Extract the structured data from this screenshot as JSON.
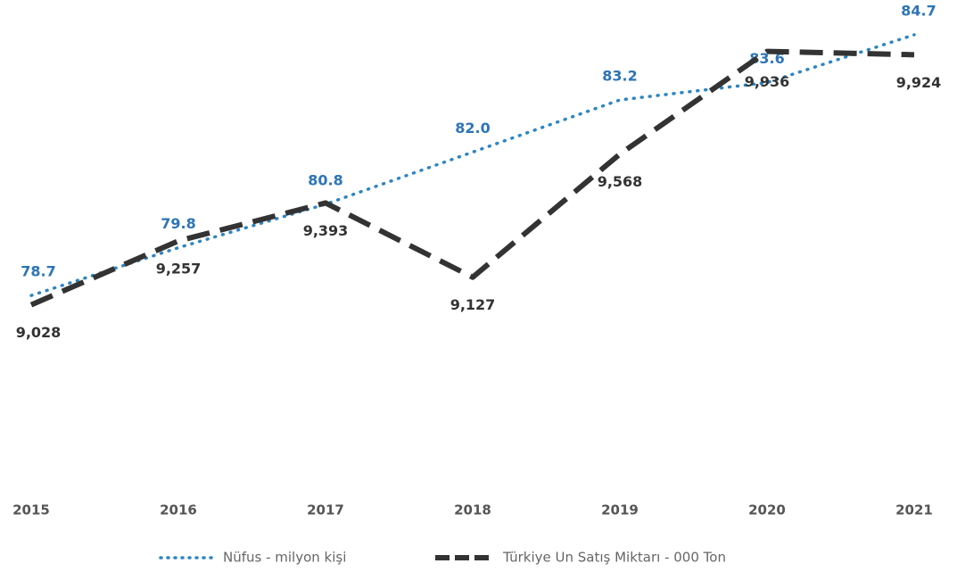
{
  "chart_data": {
    "type": "line",
    "categories": [
      "2015",
      "2016",
      "2017",
      "2018",
      "2019",
      "2020",
      "2021"
    ],
    "series": [
      {
        "name": "Nüfus - milyon kişi",
        "color": "#2e86c1",
        "style": "dotted",
        "values": [
          78.7,
          79.8,
          80.8,
          82.0,
          83.2,
          83.6,
          84.7
        ],
        "value_labels": [
          "78.7",
          "79.8",
          "80.8",
          "82.0",
          "83.2",
          "83.6",
          "84.7"
        ]
      },
      {
        "name": "Türkiye Un Satış Miktarı - 000 Ton",
        "color": "#333333",
        "style": "dashed",
        "axis": "y2",
        "values": [
          9028,
          9257,
          9393,
          9127,
          9568,
          9936,
          9924
        ],
        "value_labels": [
          "9,028",
          "9,257",
          "9,393",
          "9,127",
          "9,568",
          "9,936",
          "9,924"
        ]
      }
    ],
    "ylim": [
      74,
      85.5
    ],
    "y2lim": [
      8330,
      10120
    ],
    "legend": "bottom"
  }
}
